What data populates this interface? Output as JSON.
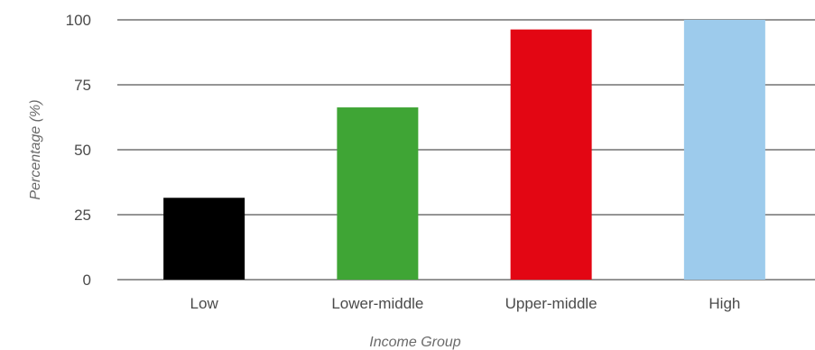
{
  "chart_data": {
    "type": "bar",
    "categories": [
      "Low",
      "Lower-middle",
      "Upper-middle",
      "High"
    ],
    "values": [
      31.5,
      66.3,
      96.3,
      100
    ],
    "colors": [
      "#000000",
      "#3fa535",
      "#e30613",
      "#9dcbec"
    ],
    "xlabel": "Income Group",
    "ylabel": "Percentage (%)",
    "ylim": [
      0,
      100
    ],
    "yticks": [
      0,
      25,
      50,
      75,
      100
    ],
    "grid": true,
    "legend": "none"
  }
}
